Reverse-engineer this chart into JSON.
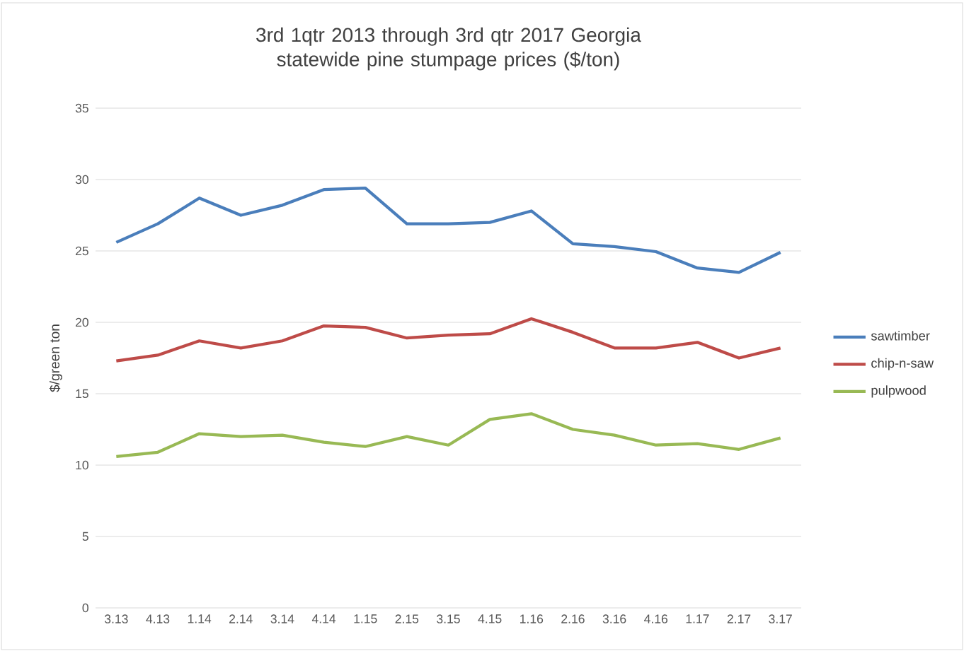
{
  "chart_data": {
    "type": "line",
    "title": "3rd 1qtr 2013 through 3rd qtr 2017 Georgia statewide pine stumpage prices ($/ton)",
    "ylabel": "$/green ton",
    "categories": [
      "3.13",
      "4.13",
      "1.14",
      "2.14",
      "3.14",
      "4.14",
      "1.15",
      "2.15",
      "3.15",
      "4.15",
      "1.16",
      "2.16",
      "3.16",
      "4.16",
      "1.17",
      "2.17",
      "3.17"
    ],
    "series": [
      {
        "name": "sawtimber",
        "color": "#4a7ebb",
        "values": [
          25.6,
          26.9,
          28.7,
          27.5,
          28.2,
          29.3,
          29.4,
          26.9,
          26.9,
          27.0,
          27.8,
          25.5,
          25.3,
          24.95,
          23.8,
          23.5,
          24.9
        ]
      },
      {
        "name": "chip-n-saw",
        "color": "#be4b48",
        "values": [
          17.3,
          17.7,
          18.7,
          18.2,
          18.7,
          19.75,
          19.65,
          18.9,
          19.1,
          19.2,
          20.25,
          19.3,
          18.2,
          18.2,
          18.6,
          17.5,
          18.2
        ]
      },
      {
        "name": "pulpwood",
        "color": "#98b954",
        "values": [
          10.6,
          10.9,
          12.2,
          12.0,
          12.1,
          11.6,
          11.3,
          12.0,
          11.4,
          13.2,
          13.6,
          12.5,
          12.1,
          11.4,
          11.5,
          11.1,
          11.9
        ]
      }
    ],
    "ylim": [
      0,
      35
    ],
    "yticks": [
      0,
      5,
      10,
      15,
      20,
      25,
      30,
      35
    ],
    "grid": "y",
    "legend": "right",
    "marker": "none",
    "line_style": "solid"
  }
}
